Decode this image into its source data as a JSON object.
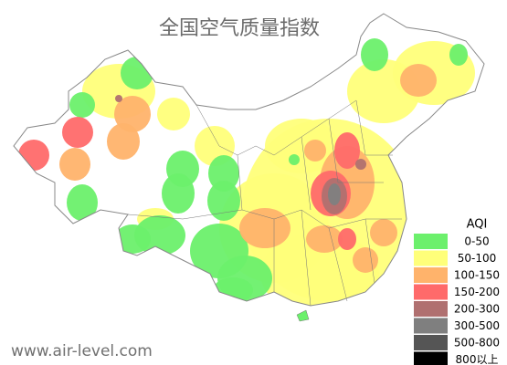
{
  "title": "全国空气质量指数",
  "legend": {
    "title": "AQI",
    "items": [
      {
        "label": "0-50",
        "color": "#6cf06c"
      },
      {
        "label": "50-100",
        "color": "#ffff7a"
      },
      {
        "label": "100-150",
        "color": "#ffb36b"
      },
      {
        "label": "150-200",
        "color": "#ff6a6a"
      },
      {
        "label": "200-300",
        "color": "#b07070"
      },
      {
        "label": "300-500",
        "color": "#7f7f7f"
      },
      {
        "label": "500-800",
        "color": "#555555"
      },
      {
        "label": "800以上",
        "color": "#000000"
      }
    ]
  },
  "footer": "www.air-level.com"
}
